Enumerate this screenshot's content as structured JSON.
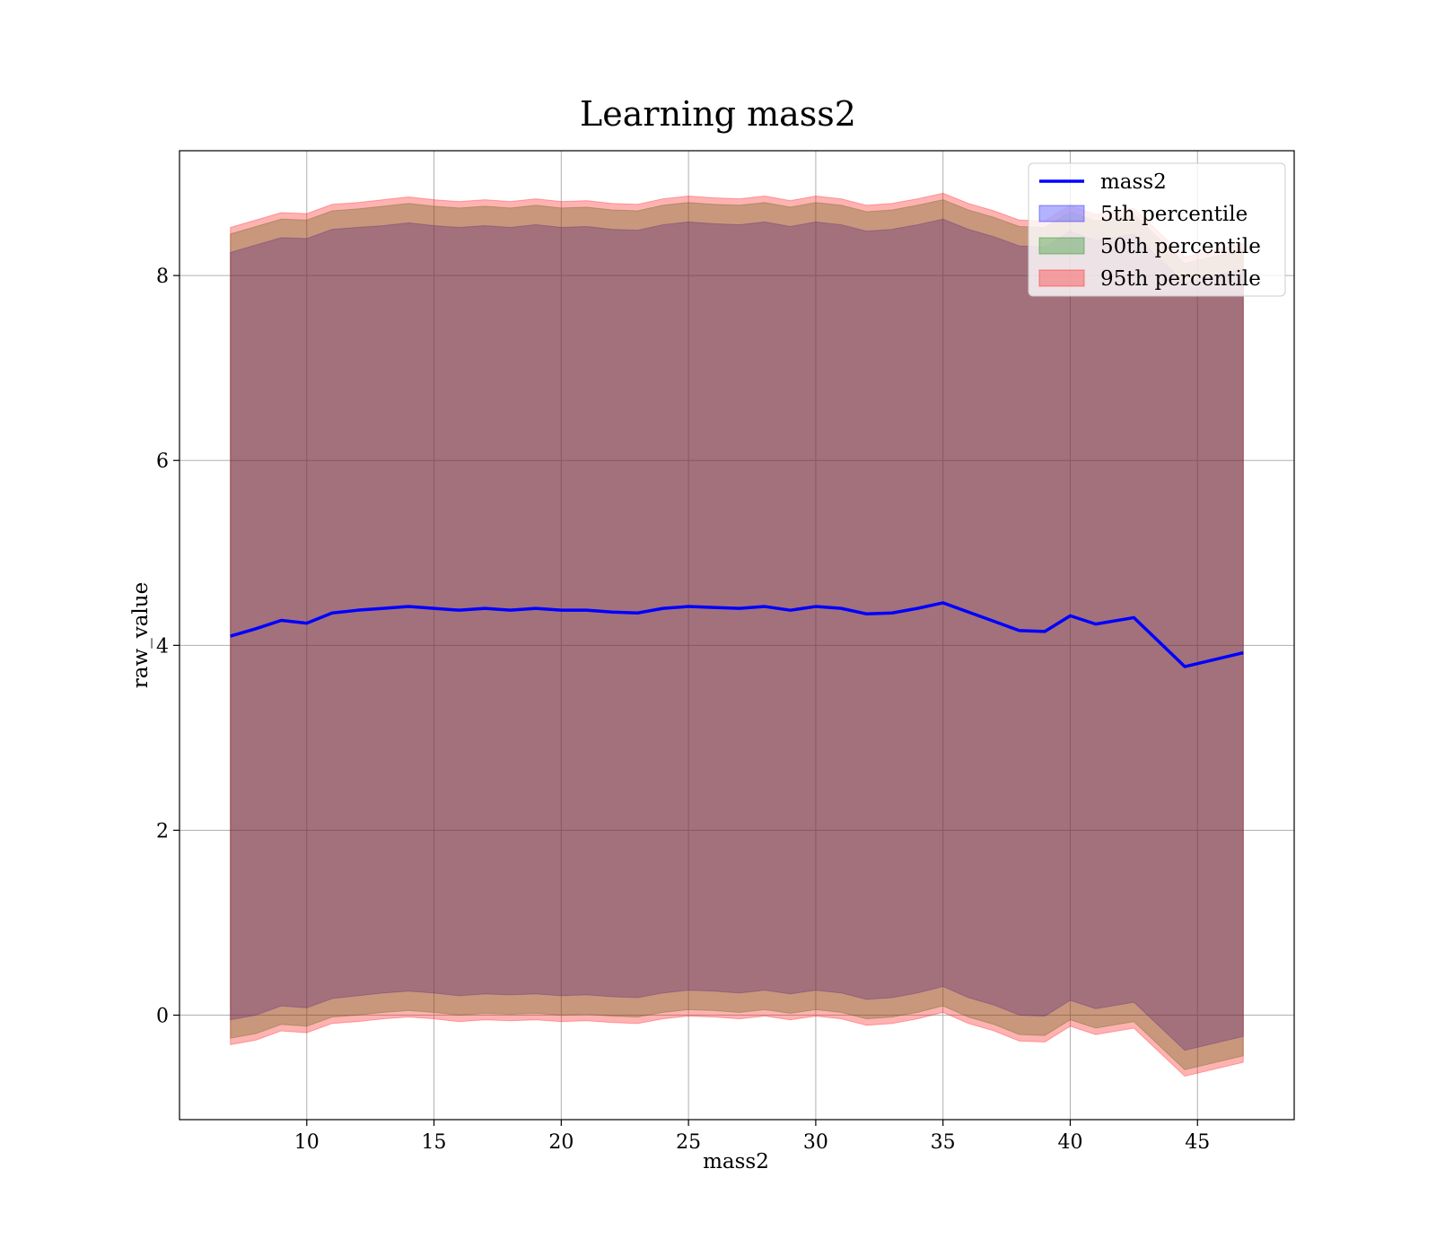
{
  "chart_data": {
    "type": "line",
    "title": "Learning mass2",
    "xlabel": "mass2",
    "ylabel": "raw_value",
    "xlim": [
      5.0,
      48.8
    ],
    "ylim": [
      -1.13,
      9.35
    ],
    "x_ticks": [
      10,
      15,
      20,
      25,
      30,
      35,
      40,
      45
    ],
    "y_ticks": [
      0,
      2,
      4,
      6,
      8
    ],
    "grid": true,
    "legend_position": "top-right",
    "x": [
      7.0,
      8.0,
      9.0,
      10.0,
      11.0,
      12.0,
      13.0,
      14.0,
      15.0,
      16.0,
      17.0,
      18.0,
      19.0,
      20.0,
      21.0,
      22.0,
      23.0,
      24.0,
      25.0,
      26.0,
      27.0,
      28.0,
      29.0,
      30.0,
      31.0,
      32.0,
      33.0,
      34.0,
      35.0,
      36.0,
      37.0,
      38.0,
      39.0,
      40.0,
      41.0,
      42.5,
      44.5,
      46.8
    ],
    "series": [
      {
        "name": "mass2",
        "kind": "line",
        "color": "#0000ff",
        "values": [
          4.1,
          4.18,
          4.27,
          4.24,
          4.35,
          4.38,
          4.4,
          4.42,
          4.4,
          4.38,
          4.4,
          4.38,
          4.4,
          4.38,
          4.38,
          4.36,
          4.35,
          4.4,
          4.42,
          4.41,
          4.4,
          4.42,
          4.38,
          4.42,
          4.4,
          4.34,
          4.35,
          4.4,
          4.46,
          4.36,
          4.26,
          4.16,
          4.15,
          4.32,
          4.23,
          4.3,
          3.77,
          3.92
        ]
      },
      {
        "name": "5th percentile",
        "kind": "band",
        "color": "#0000ff",
        "opacity": 0.3,
        "lower": [
          -0.05,
          0.0,
          0.1,
          0.08,
          0.18,
          0.21,
          0.24,
          0.26,
          0.24,
          0.21,
          0.23,
          0.22,
          0.23,
          0.21,
          0.22,
          0.2,
          0.19,
          0.24,
          0.27,
          0.26,
          0.24,
          0.27,
          0.23,
          0.27,
          0.24,
          0.17,
          0.19,
          0.24,
          0.31,
          0.19,
          0.11,
          0.0,
          -0.01,
          0.16,
          0.07,
          0.14,
          -0.38,
          -0.23
        ],
        "upper": [
          8.25,
          8.33,
          8.41,
          8.4,
          8.5,
          8.52,
          8.54,
          8.57,
          8.54,
          8.52,
          8.54,
          8.52,
          8.55,
          8.52,
          8.53,
          8.5,
          8.49,
          8.55,
          8.58,
          8.56,
          8.55,
          8.58,
          8.53,
          8.58,
          8.55,
          8.48,
          8.5,
          8.55,
          8.61,
          8.5,
          8.42,
          8.32,
          8.31,
          8.48,
          8.38,
          8.45,
          7.92,
          8.07
        ]
      },
      {
        "name": "50th percentile",
        "kind": "band",
        "color": "#008000",
        "opacity": 0.3,
        "lower": [
          -0.25,
          -0.2,
          -0.1,
          -0.12,
          -0.02,
          0.0,
          0.03,
          0.05,
          0.03,
          0.0,
          0.02,
          0.01,
          0.02,
          0.0,
          0.01,
          -0.01,
          -0.02,
          0.03,
          0.06,
          0.05,
          0.03,
          0.06,
          0.02,
          0.06,
          0.03,
          -0.04,
          -0.02,
          0.03,
          0.1,
          -0.02,
          -0.1,
          -0.21,
          -0.22,
          -0.05,
          -0.14,
          -0.07,
          -0.59,
          -0.44
        ],
        "upper": [
          8.45,
          8.53,
          8.61,
          8.6,
          8.7,
          8.72,
          8.75,
          8.78,
          8.75,
          8.73,
          8.75,
          8.73,
          8.76,
          8.73,
          8.74,
          8.71,
          8.7,
          8.76,
          8.79,
          8.77,
          8.76,
          8.79,
          8.74,
          8.79,
          8.76,
          8.69,
          8.71,
          8.76,
          8.82,
          8.71,
          8.63,
          8.53,
          8.52,
          8.69,
          8.59,
          8.66,
          8.13,
          8.28
        ]
      },
      {
        "name": "95th percentile",
        "kind": "band",
        "color": "#ff0000",
        "opacity": 0.3,
        "lower": [
          -0.32,
          -0.27,
          -0.17,
          -0.19,
          -0.09,
          -0.07,
          -0.04,
          -0.02,
          -0.04,
          -0.07,
          -0.05,
          -0.06,
          -0.05,
          -0.07,
          -0.06,
          -0.08,
          -0.09,
          -0.04,
          -0.01,
          -0.02,
          -0.04,
          -0.01,
          -0.05,
          -0.01,
          -0.04,
          -0.11,
          -0.09,
          -0.04,
          0.03,
          -0.09,
          -0.17,
          -0.28,
          -0.29,
          -0.12,
          -0.21,
          -0.14,
          -0.66,
          -0.51
        ],
        "upper": [
          8.52,
          8.6,
          8.68,
          8.67,
          8.77,
          8.79,
          8.82,
          8.85,
          8.82,
          8.8,
          8.82,
          8.8,
          8.83,
          8.8,
          8.81,
          8.78,
          8.77,
          8.83,
          8.86,
          8.84,
          8.83,
          8.86,
          8.81,
          8.86,
          8.83,
          8.76,
          8.78,
          8.83,
          8.89,
          8.78,
          8.7,
          8.6,
          8.59,
          8.76,
          8.66,
          8.73,
          8.2,
          8.35
        ]
      }
    ]
  }
}
